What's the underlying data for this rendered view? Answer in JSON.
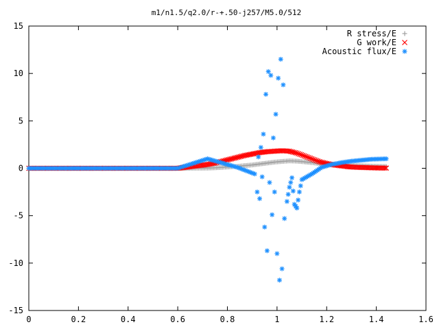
{
  "chart_data": {
    "type": "scatter",
    "title": "m1/n1.5/q2.0/r-+.50-j257/M5.0/512",
    "xlabel": "",
    "ylabel": "",
    "xlim": [
      0,
      1.6
    ],
    "ylim": [
      -15,
      15
    ],
    "x_ticks": [
      0,
      0.2,
      0.4,
      0.6,
      0.8,
      1,
      1.2,
      1.4,
      1.6
    ],
    "x_tick_labels": [
      "0",
      "0.2",
      "0.4",
      "0.6",
      "0.8",
      "1",
      "1.2",
      "1.4",
      "1.6"
    ],
    "y_ticks": [
      -15,
      -10,
      -5,
      0,
      5,
      10,
      15
    ],
    "y_tick_labels": [
      "-15",
      "-10",
      "-5",
      "0",
      "5",
      "10",
      "15"
    ],
    "grid": false,
    "legend_position": "top-right",
    "series": [
      {
        "name": "R stress/E",
        "marker": "plus",
        "color": "#a0a0a0",
        "x": [
          0,
          0.1,
          0.2,
          0.3,
          0.4,
          0.5,
          0.6,
          0.72,
          0.75,
          0.78,
          0.81,
          0.84,
          0.87,
          0.9,
          0.93,
          0.96,
          0.99,
          1.02,
          1.05,
          1.08,
          1.11,
          1.14,
          1.17,
          1.2,
          1.23,
          1.26,
          1.29,
          1.32,
          1.35,
          1.38,
          1.41,
          1.44
        ],
        "y": [
          0,
          0,
          0,
          0,
          0,
          0,
          0,
          0.02,
          0.05,
          0.1,
          0.15,
          0.2,
          0.28,
          0.35,
          0.45,
          0.55,
          0.65,
          0.72,
          0.78,
          0.75,
          0.68,
          0.6,
          0.5,
          0.45,
          0.4,
          0.35,
          0.3,
          0.28,
          0.25,
          0.22,
          0.2,
          0.18
        ]
      },
      {
        "name": "G work/E",
        "marker": "cross",
        "color": "#ff0000",
        "x": [
          0,
          0.1,
          0.2,
          0.3,
          0.4,
          0.5,
          0.6,
          0.72,
          0.75,
          0.78,
          0.81,
          0.84,
          0.87,
          0.9,
          0.93,
          0.96,
          0.99,
          1.02,
          1.05,
          1.08,
          1.11,
          1.14,
          1.17,
          1.2,
          1.23,
          1.26,
          1.29,
          1.32,
          1.35,
          1.38,
          1.41,
          1.44
        ],
        "y": [
          0,
          0,
          0,
          0,
          0,
          0,
          0,
          0.4,
          0.55,
          0.75,
          0.95,
          1.15,
          1.35,
          1.5,
          1.65,
          1.75,
          1.8,
          1.85,
          1.8,
          1.6,
          1.3,
          1.0,
          0.7,
          0.5,
          0.35,
          0.25,
          0.15,
          0.1,
          0.08,
          0.05,
          0.03,
          0.02
        ]
      },
      {
        "name": "Acoustic flux/E",
        "marker": "star",
        "color": "#1e90ff",
        "x": [
          0,
          0.1,
          0.2,
          0.3,
          0.4,
          0.5,
          0.6,
          0.72,
          0.76,
          0.8,
          0.84,
          0.88,
          0.91,
          0.92,
          0.925,
          0.93,
          0.935,
          0.94,
          0.945,
          0.95,
          0.955,
          0.96,
          0.965,
          0.97,
          0.975,
          0.98,
          0.985,
          0.99,
          0.995,
          1.0,
          1.005,
          1.01,
          1.015,
          1.02,
          1.025,
          1.03,
          1.04,
          1.05,
          1.06,
          1.07,
          1.08,
          1.09,
          1.1,
          1.14,
          1.18,
          1.22,
          1.26,
          1.3,
          1.34,
          1.38,
          1.44
        ],
        "y": [
          0,
          0,
          0,
          0,
          0,
          0,
          0,
          1.0,
          0.7,
          0.4,
          0.1,
          -0.3,
          -0.6,
          -2.5,
          1.2,
          -3.2,
          2.2,
          -0.9,
          3.6,
          -6.2,
          7.8,
          -8.7,
          10.2,
          -1.5,
          9.8,
          -4.9,
          3.2,
          -2.5,
          5.7,
          -9.0,
          9.5,
          -11.8,
          11.5,
          -10.6,
          8.8,
          -5.3,
          -3.5,
          -2.0,
          -1.0,
          -3.8,
          -4.2,
          -2.5,
          -1.2,
          -0.6,
          0.1,
          0.4,
          0.6,
          0.75,
          0.85,
          0.95,
          1.0
        ]
      }
    ]
  }
}
